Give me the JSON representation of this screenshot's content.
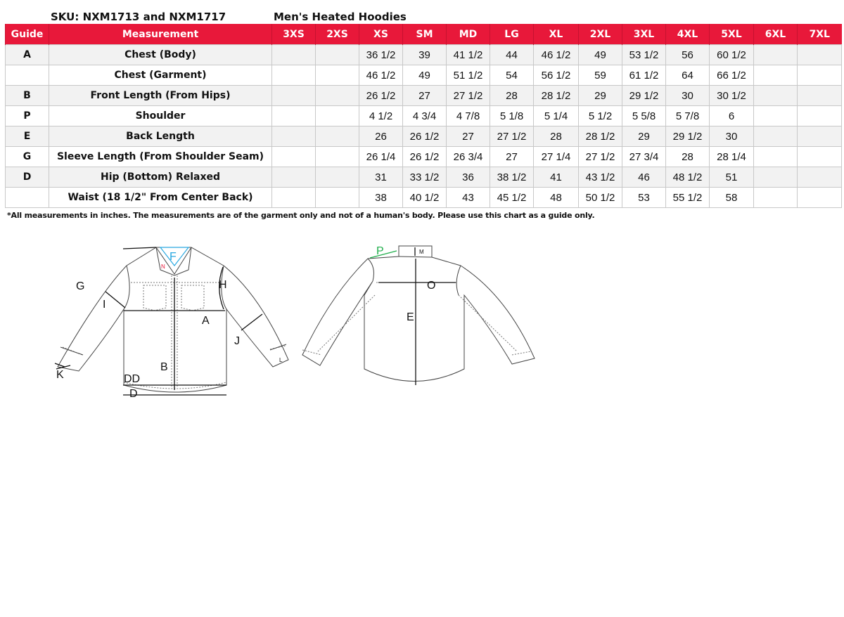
{
  "header": {
    "sku": "SKU: NXM1713 and NXM1717",
    "product": "Men's Heated Hoodies"
  },
  "colors": {
    "header_bg": "#e8183a",
    "header_text": "#ffffff",
    "alt_row": "#f2f2f2"
  },
  "table": {
    "columns": [
      "Guide",
      "Measurement",
      "3XS",
      "2XS",
      "XS",
      "SM",
      "MD",
      "LG",
      "XL",
      "2XL",
      "3XL",
      "4XL",
      "5XL",
      "6XL",
      "7XL"
    ],
    "rows": [
      {
        "guide": "A",
        "measurement": "Chest (Body)",
        "values": [
          "",
          "",
          "36 1/2",
          "39",
          "41 1/2",
          "44",
          "46 1/2",
          "49",
          "53 1/2",
          "56",
          "60 1/2",
          "",
          ""
        ]
      },
      {
        "guide": "",
        "measurement": "Chest (Garment)",
        "values": [
          "",
          "",
          "46 1/2",
          "49",
          "51 1/2",
          "54",
          "56 1/2",
          "59",
          "61 1/2",
          "64",
          "66 1/2",
          "",
          ""
        ]
      },
      {
        "guide": "B",
        "measurement": "Front Length (From Hips)",
        "values": [
          "",
          "",
          "26 1/2",
          "27",
          "27 1/2",
          "28",
          "28 1/2",
          "29",
          "29 1/2",
          "30",
          "30 1/2",
          "",
          ""
        ]
      },
      {
        "guide": "P",
        "measurement": "Shoulder",
        "values": [
          "",
          "",
          "4 1/2",
          "4 3/4",
          "4 7/8",
          "5 1/8",
          "5 1/4",
          "5 1/2",
          "5 5/8",
          "5 7/8",
          "6",
          "",
          ""
        ]
      },
      {
        "guide": "E",
        "measurement": "Back Length",
        "values": [
          "",
          "",
          "26",
          "26 1/2",
          "27",
          "27 1/2",
          "28",
          "28 1/2",
          "29",
          "29 1/2",
          "30",
          "",
          ""
        ]
      },
      {
        "guide": "G",
        "measurement": "Sleeve Length (From Shoulder Seam)",
        "values": [
          "",
          "",
          "26 1/4",
          "26 1/2",
          "26 3/4",
          "27",
          "27 1/4",
          "27 1/2",
          "27 3/4",
          "28",
          "28 1/4",
          "",
          ""
        ]
      },
      {
        "guide": "D",
        "measurement": "Hip (Bottom) Relaxed",
        "values": [
          "",
          "",
          "31",
          "33 1/2",
          "36",
          "38 1/2",
          "41",
          "43 1/2",
          "46",
          "48 1/2",
          "51",
          "",
          ""
        ]
      },
      {
        "guide": "",
        "measurement": "Waist (18 1/2\" From Center Back)",
        "values": [
          "",
          "",
          "38",
          "40 1/2",
          "43",
          "45 1/2",
          "48",
          "50 1/2",
          "53",
          "55 1/2",
          "58",
          "",
          ""
        ]
      }
    ]
  },
  "footnote": "*All measurements in inches. The measurements are of the garment only and not of a human's body. Please use this chart as a guide only.",
  "diagram": {
    "front_labels": {
      "G": "G",
      "I": "I",
      "F": "F",
      "N": "N",
      "H": "H",
      "A": "A",
      "J": "J",
      "B": "B",
      "K": "K",
      "DD": "DD",
      "D": "D",
      "L": "L"
    },
    "back_labels": {
      "P": "P",
      "M": "M",
      "O": "O",
      "E": "E"
    }
  }
}
